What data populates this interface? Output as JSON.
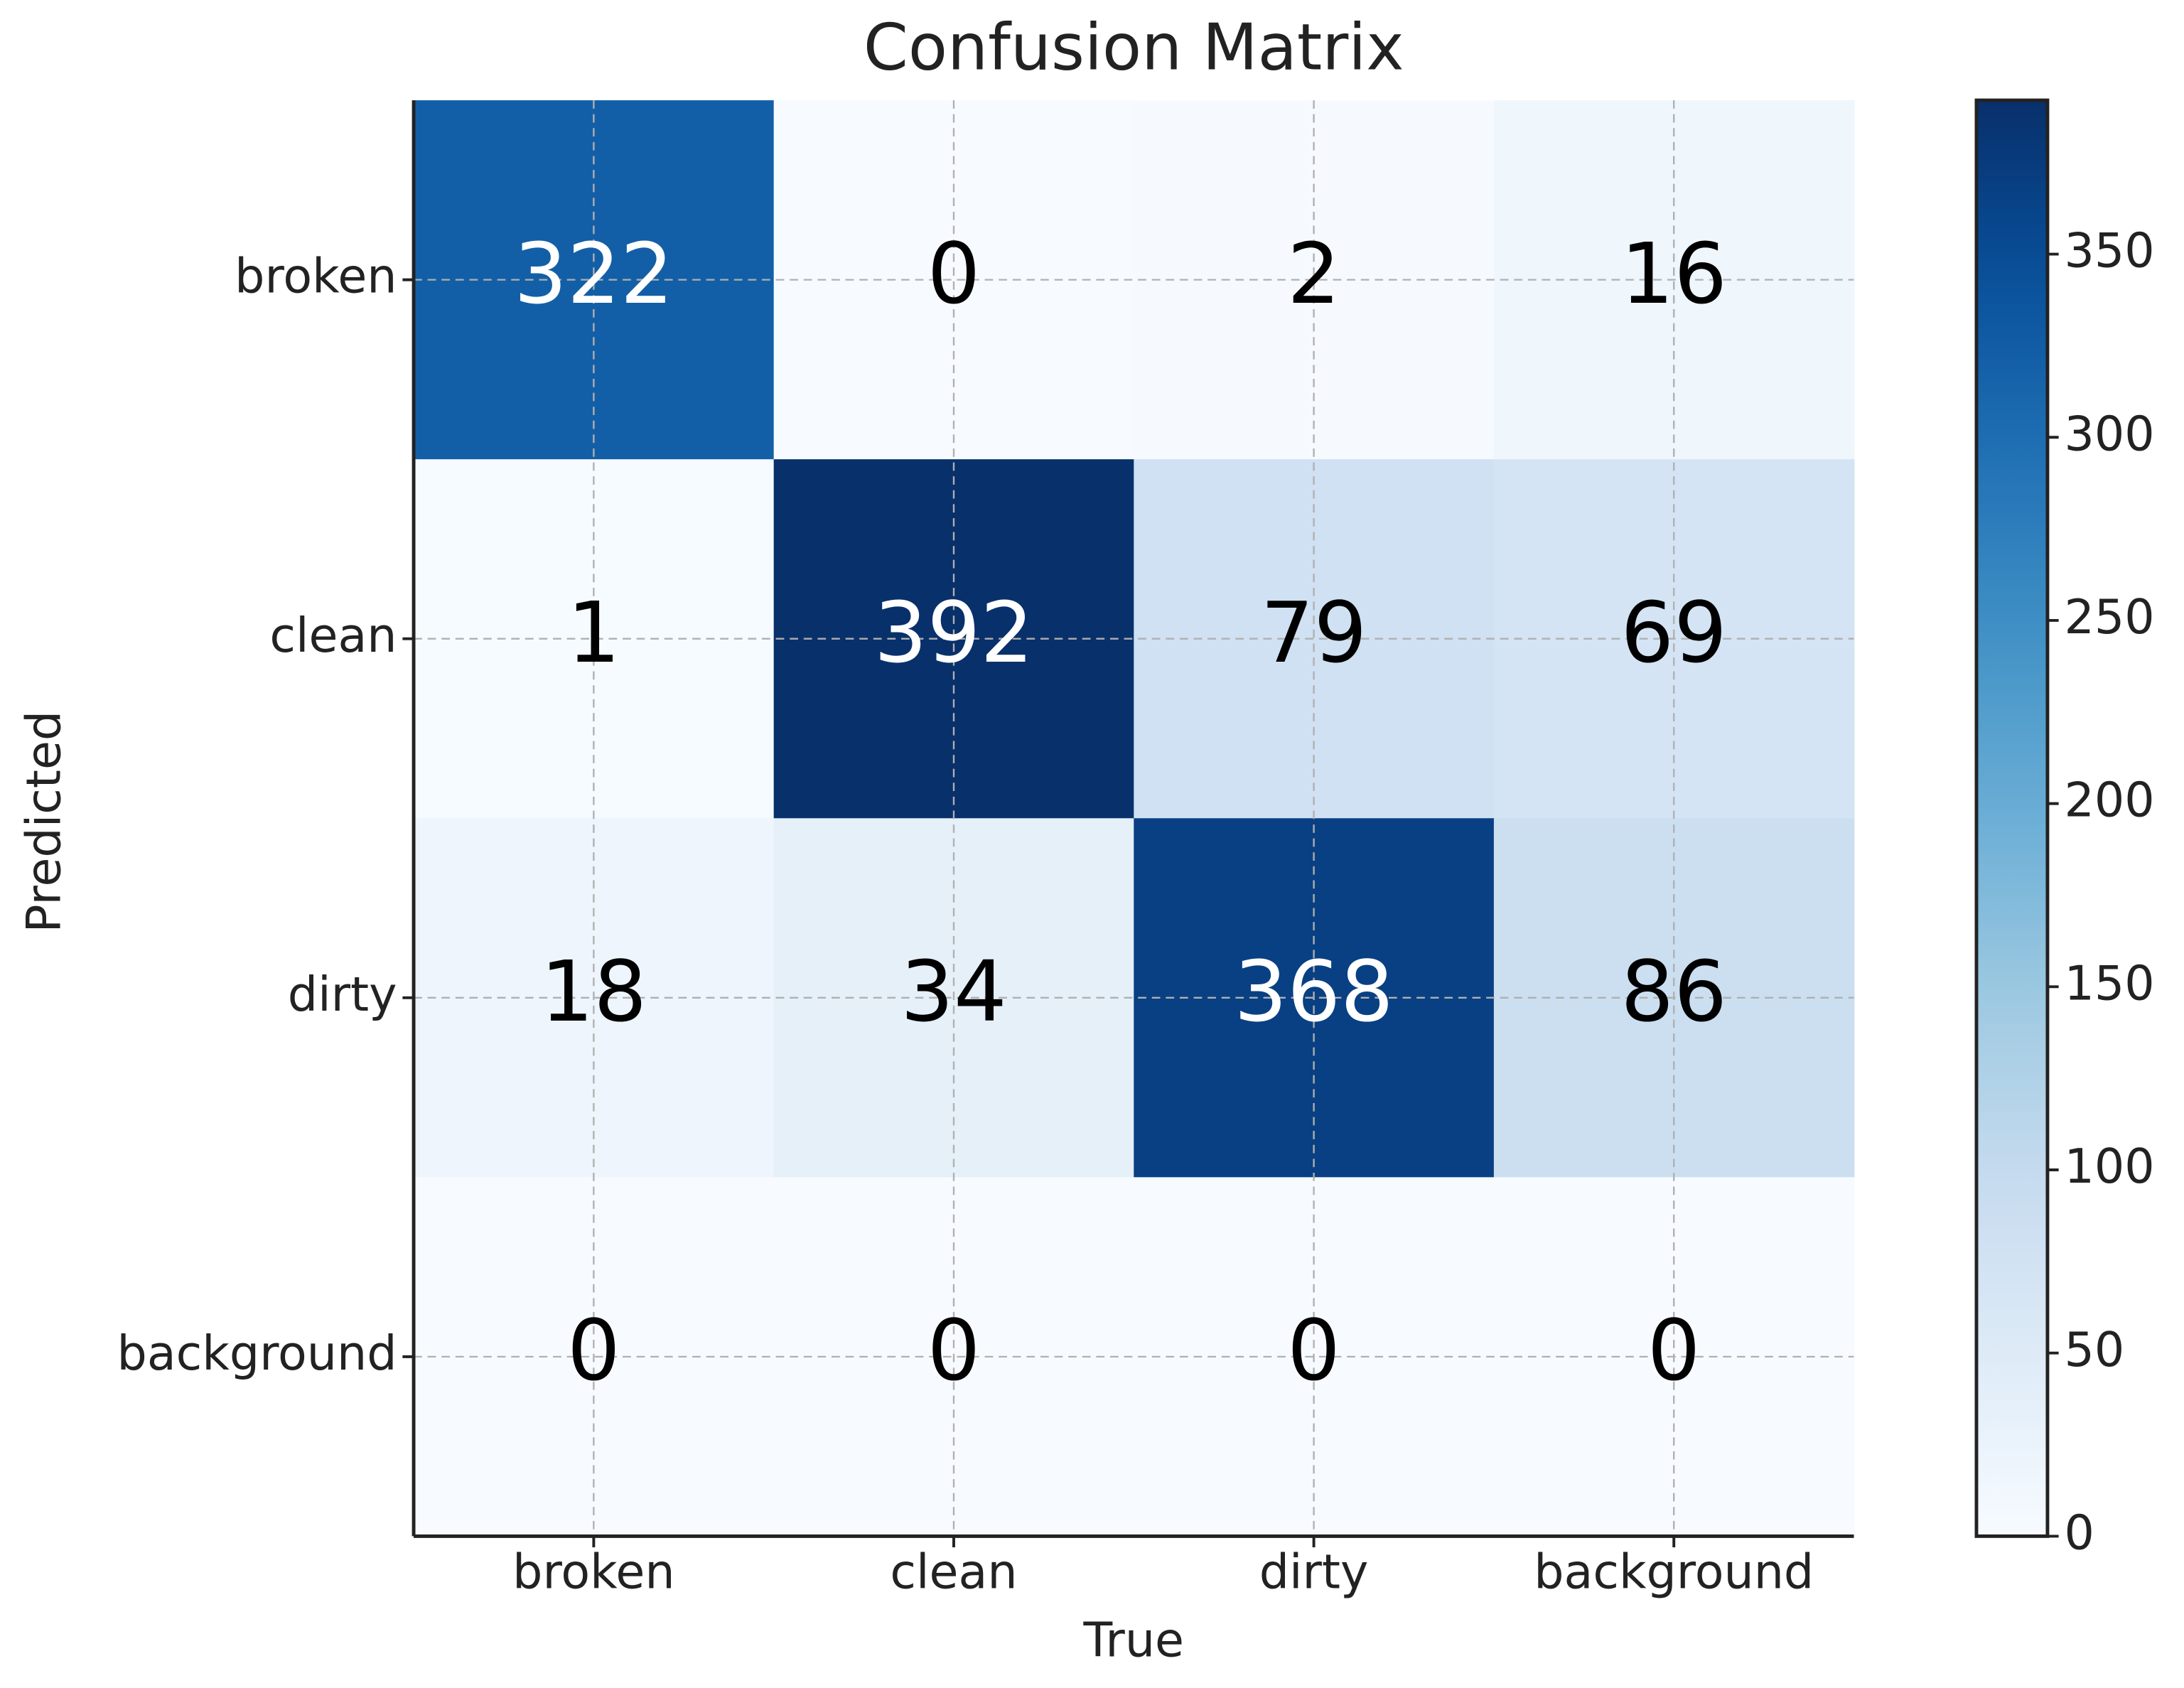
{
  "chart_data": {
    "type": "heatmap",
    "title": "Confusion Matrix",
    "x_label": "True",
    "y_label": "Predicted",
    "x_categories": [
      "broken",
      "clean",
      "dirty",
      "background"
    ],
    "y_categories": [
      "broken",
      "clean",
      "dirty",
      "background"
    ],
    "values": [
      [
        322,
        0,
        2,
        16
      ],
      [
        1,
        392,
        79,
        69
      ],
      [
        18,
        34,
        368,
        86
      ],
      [
        0,
        0,
        0,
        0
      ]
    ],
    "colormap": "Blues",
    "clim": [
      0,
      392
    ],
    "colorbar_ticks": [
      0,
      50,
      100,
      150,
      200,
      250,
      300,
      350
    ],
    "grid": true
  }
}
